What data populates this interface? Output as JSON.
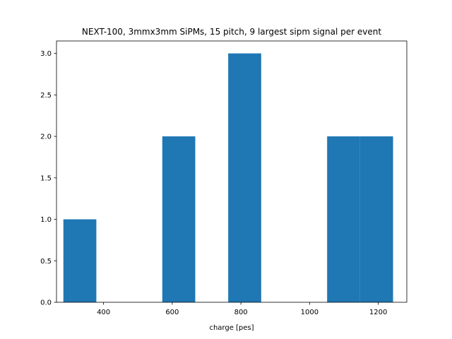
{
  "chart_data": {
    "type": "bar",
    "title": "NEXT-100, 3mmx3mm SiPMs, 15 pitch, 9 largest sipm signal per event",
    "xlabel": "charge [pes]",
    "ylabel": "",
    "xlim": [
      263,
      1283
    ],
    "ylim": [
      0,
      3.15
    ],
    "x_ticks": [
      400,
      600,
      800,
      1000,
      1200
    ],
    "x_tick_labels": [
      "400",
      "600",
      "800",
      "1000",
      "1200"
    ],
    "y_ticks": [
      0,
      0.5,
      1,
      1.5,
      2,
      2.5,
      3
    ],
    "y_tick_labels": [
      "0.0",
      "0.5",
      "1.0",
      "1.5",
      "2.0",
      "2.5",
      "3.0"
    ],
    "bar_color": "#1f77b4",
    "bins": [
      {
        "x0": 283,
        "x1": 379,
        "count": 1
      },
      {
        "x0": 379,
        "x1": 475,
        "count": 0
      },
      {
        "x0": 475,
        "x1": 571,
        "count": 0
      },
      {
        "x0": 571,
        "x1": 667,
        "count": 2
      },
      {
        "x0": 667,
        "x1": 763,
        "count": 0
      },
      {
        "x0": 763,
        "x1": 859,
        "count": 3
      },
      {
        "x0": 859,
        "x1": 955,
        "count": 0
      },
      {
        "x0": 955,
        "x1": 1051,
        "count": 0
      },
      {
        "x0": 1051,
        "x1": 1147,
        "count": 2
      },
      {
        "x0": 1147,
        "x1": 1243,
        "count": 2
      }
    ]
  }
}
